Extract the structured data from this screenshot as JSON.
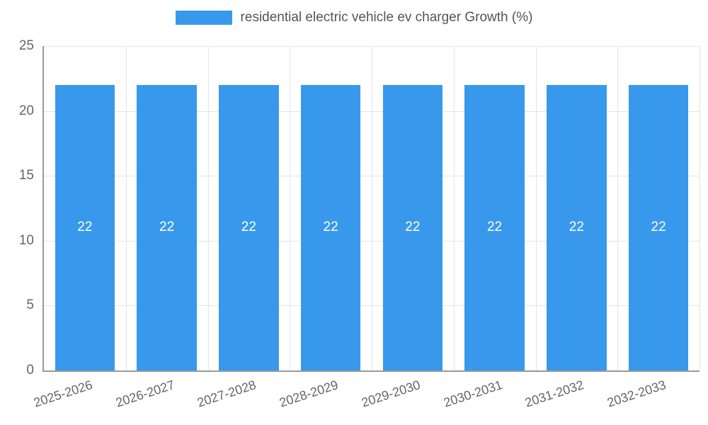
{
  "legend": {
    "label": "residential electric vehicle ev charger Growth (%)"
  },
  "chart_data": {
    "type": "bar",
    "title": "residential electric vehicle ev charger Growth (%)",
    "categories": [
      "2025-2026",
      "2026-2027",
      "2027-2028",
      "2028-2029",
      "2029-2030",
      "2030-2031",
      "2031-2032",
      "2032-2033"
    ],
    "values": [
      22,
      22,
      22,
      22,
      22,
      22,
      22,
      22
    ],
    "bar_labels": [
      "22",
      "22",
      "22",
      "22",
      "22",
      "22",
      "22",
      "22"
    ],
    "xlabel": "",
    "ylabel": "",
    "ylim": [
      0,
      25
    ],
    "yticks": [
      0,
      5,
      10,
      15,
      20,
      25
    ],
    "grid": true,
    "legend_position": "top",
    "colors": {
      "bar": "#3899EC",
      "bar_label": "#ffffff",
      "axis": "#999999",
      "gridline": "#e5e5e5",
      "tick_label": "#666666",
      "legend_text": "#555555",
      "background": "#ffffff"
    }
  }
}
